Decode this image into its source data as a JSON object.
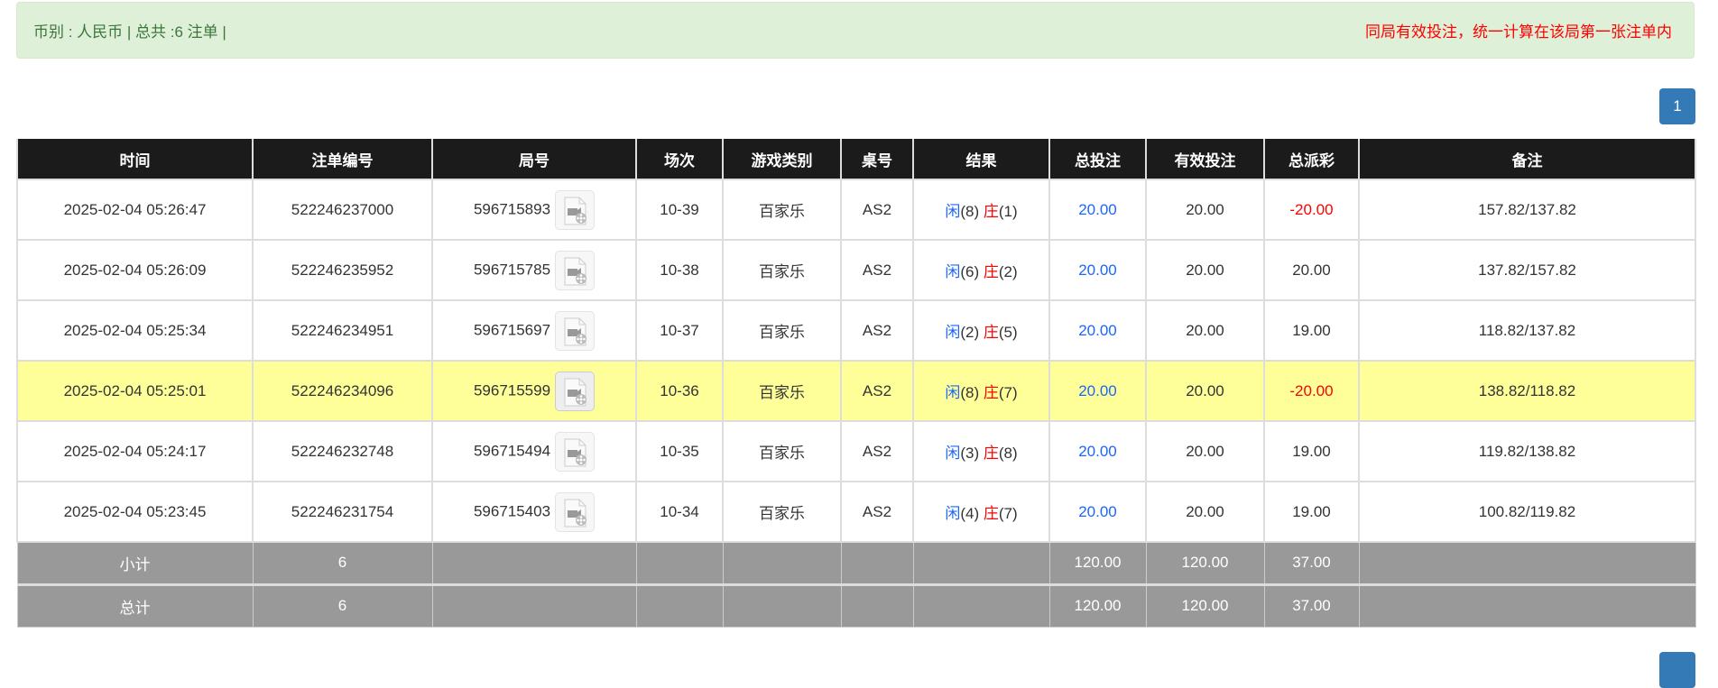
{
  "alert": {
    "summary": "币别 : 人民币 | 总共 :6 注单 |",
    "notice": "同局有效投注，统一计算在该局第一张注单内"
  },
  "pagination": {
    "current": "1"
  },
  "colors": {
    "header": "#1b1b1b",
    "highlight": "#ffff99",
    "player": "#1a66ff",
    "banker": "#ff0000",
    "negative": "#ff0000",
    "footer": "#999999",
    "alert_bg": "#dff0d8"
  },
  "table": {
    "headers": [
      "时间",
      "注单编号",
      "局号",
      "场次",
      "游戏类别",
      "桌号",
      "结果",
      "总投注",
      "有效投注",
      "总派彩",
      "备注"
    ],
    "rows": [
      {
        "time": "2025-02-04 05:26:47",
        "bet_id": "522246237000",
        "round": "596715893",
        "shoe": "10-39",
        "game": "百家乐",
        "table": "AS2",
        "player": "闲",
        "player_pts": "(8)",
        "banker": "庄",
        "banker_pts": "(1)",
        "total": "20.00",
        "valid": "20.00",
        "payout": "-20.00",
        "payout_negative": true,
        "note": "157.82/137.82",
        "highlight": false
      },
      {
        "time": "2025-02-04 05:26:09",
        "bet_id": "522246235952",
        "round": "596715785",
        "shoe": "10-38",
        "game": "百家乐",
        "table": "AS2",
        "player": "闲",
        "player_pts": "(6)",
        "banker": "庄",
        "banker_pts": "(2)",
        "total": "20.00",
        "valid": "20.00",
        "payout": "20.00",
        "payout_negative": false,
        "note": "137.82/157.82",
        "highlight": false
      },
      {
        "time": "2025-02-04 05:25:34",
        "bet_id": "522246234951",
        "round": "596715697",
        "shoe": "10-37",
        "game": "百家乐",
        "table": "AS2",
        "player": "闲",
        "player_pts": "(2)",
        "banker": "庄",
        "banker_pts": "(5)",
        "total": "20.00",
        "valid": "20.00",
        "payout": "19.00",
        "payout_negative": false,
        "note": "118.82/137.82",
        "highlight": false
      },
      {
        "time": "2025-02-04 05:25:01",
        "bet_id": "522246234096",
        "round": "596715599",
        "shoe": "10-36",
        "game": "百家乐",
        "table": "AS2",
        "player": "闲",
        "player_pts": "(8)",
        "banker": "庄",
        "banker_pts": "(7)",
        "total": "20.00",
        "valid": "20.00",
        "payout": "-20.00",
        "payout_negative": true,
        "note": "138.82/118.82",
        "highlight": true
      },
      {
        "time": "2025-02-04 05:24:17",
        "bet_id": "522246232748",
        "round": "596715494",
        "shoe": "10-35",
        "game": "百家乐",
        "table": "AS2",
        "player": "闲",
        "player_pts": "(3)",
        "banker": "庄",
        "banker_pts": "(8)",
        "total": "20.00",
        "valid": "20.00",
        "payout": "19.00",
        "payout_negative": false,
        "note": "119.82/138.82",
        "highlight": false
      },
      {
        "time": "2025-02-04 05:23:45",
        "bet_id": "522246231754",
        "round": "596715403",
        "shoe": "10-34",
        "game": "百家乐",
        "table": "AS2",
        "player": "闲",
        "player_pts": "(4)",
        "banker": "庄",
        "banker_pts": "(7)",
        "total": "20.00",
        "valid": "20.00",
        "payout": "19.00",
        "payout_negative": false,
        "note": "100.82/119.82",
        "highlight": false
      }
    ],
    "subtotal": {
      "label": "小计",
      "count": "6",
      "total": "120.00",
      "valid": "120.00",
      "payout": "37.00"
    },
    "grand_total": {
      "label": "总计",
      "count": "6",
      "total": "120.00",
      "valid": "120.00",
      "payout": "37.00"
    }
  }
}
